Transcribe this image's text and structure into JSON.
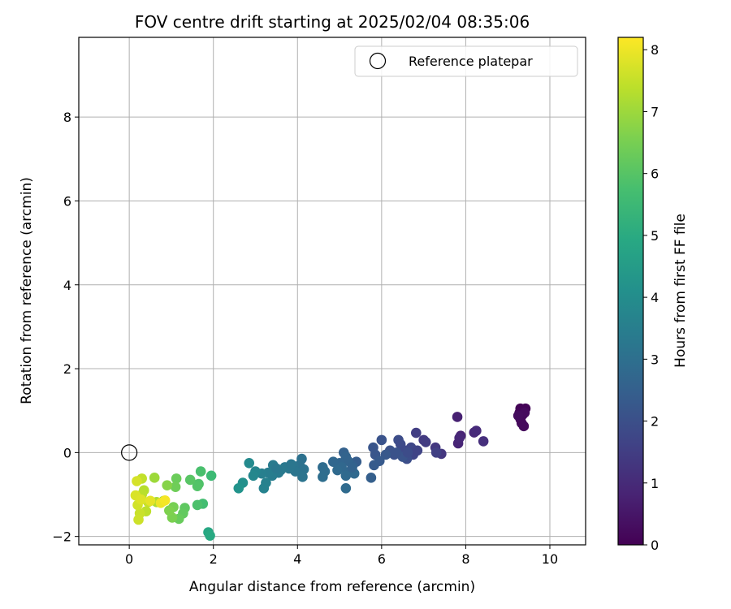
{
  "chart_data": {
    "type": "scatter",
    "title": "FOV centre drift starting at 2025/02/04 08:35:06",
    "xlabel": "Angular distance from reference (arcmin)",
    "ylabel": "Rotation from reference (arcmin)",
    "xlim": [
      -1.2,
      10.85
    ],
    "ylim": [
      -2.2,
      9.9
    ],
    "xticks": [
      0,
      2,
      4,
      6,
      8,
      10
    ],
    "yticks": [
      -2,
      0,
      2,
      4,
      6,
      8
    ],
    "grid": true,
    "legend": {
      "placement": "upper-right",
      "entries": [
        {
          "label": "Reference platepar",
          "marker": "open-circle"
        }
      ]
    },
    "reference_point": {
      "x": 0,
      "y": 0
    },
    "colorbar": {
      "label": "Hours from first FF file",
      "range": [
        0,
        8.2
      ],
      "ticks": [
        0,
        1,
        2,
        3,
        4,
        5,
        6,
        7,
        8
      ],
      "colormap": "viridis"
    },
    "points": [
      {
        "x": 9.3,
        "y": 1.05,
        "t": 0.05
      },
      {
        "x": 9.42,
        "y": 1.05,
        "t": 0.08
      },
      {
        "x": 9.28,
        "y": 0.95,
        "t": 0.1
      },
      {
        "x": 9.35,
        "y": 0.9,
        "t": 0.12
      },
      {
        "x": 9.3,
        "y": 0.8,
        "t": 0.15
      },
      {
        "x": 9.33,
        "y": 0.7,
        "t": 0.18
      },
      {
        "x": 9.38,
        "y": 0.63,
        "t": 0.2
      },
      {
        "x": 9.4,
        "y": 0.95,
        "t": 0.22
      },
      {
        "x": 9.25,
        "y": 0.88,
        "t": 0.25
      },
      {
        "x": 7.8,
        "y": 0.85,
        "t": 0.75
      },
      {
        "x": 7.88,
        "y": 0.4,
        "t": 0.8
      },
      {
        "x": 7.82,
        "y": 0.22,
        "t": 0.85
      },
      {
        "x": 8.2,
        "y": 0.48,
        "t": 0.95
      },
      {
        "x": 8.25,
        "y": 0.52,
        "t": 1.0
      },
      {
        "x": 8.42,
        "y": 0.27,
        "t": 1.1
      },
      {
        "x": 7.85,
        "y": 0.35,
        "t": 0.9
      },
      {
        "x": 6.82,
        "y": 0.47,
        "t": 1.5
      },
      {
        "x": 7.0,
        "y": 0.3,
        "t": 1.4
      },
      {
        "x": 7.05,
        "y": 0.25,
        "t": 1.45
      },
      {
        "x": 7.28,
        "y": 0.12,
        "t": 1.35
      },
      {
        "x": 7.42,
        "y": -0.03,
        "t": 1.3
      },
      {
        "x": 7.3,
        "y": 0.0,
        "t": 1.55
      },
      {
        "x": 6.4,
        "y": 0.3,
        "t": 1.9
      },
      {
        "x": 6.45,
        "y": 0.2,
        "t": 1.85
      },
      {
        "x": 6.55,
        "y": 0.05,
        "t": 1.8
      },
      {
        "x": 6.7,
        "y": 0.12,
        "t": 1.75
      },
      {
        "x": 6.75,
        "y": -0.05,
        "t": 1.7
      },
      {
        "x": 6.6,
        "y": -0.15,
        "t": 1.95
      },
      {
        "x": 6.85,
        "y": 0.05,
        "t": 1.65
      },
      {
        "x": 6.3,
        "y": -0.05,
        "t": 2.0
      },
      {
        "x": 6.2,
        "y": 0.05,
        "t": 2.05
      },
      {
        "x": 6.0,
        "y": 0.3,
        "t": 2.1
      },
      {
        "x": 5.8,
        "y": 0.12,
        "t": 2.15
      },
      {
        "x": 5.85,
        "y": -0.05,
        "t": 2.2
      },
      {
        "x": 6.1,
        "y": -0.05,
        "t": 2.25
      },
      {
        "x": 5.95,
        "y": -0.2,
        "t": 2.3
      },
      {
        "x": 5.82,
        "y": -0.3,
        "t": 2.35
      },
      {
        "x": 6.5,
        "y": -0.1,
        "t": 2.12
      },
      {
        "x": 6.35,
        "y": 0.0,
        "t": 2.08
      },
      {
        "x": 6.62,
        "y": 0.0,
        "t": 1.88
      },
      {
        "x": 5.75,
        "y": -0.6,
        "t": 2.45
      },
      {
        "x": 5.4,
        "y": -0.22,
        "t": 2.4
      },
      {
        "x": 5.3,
        "y": -0.3,
        "t": 2.5
      },
      {
        "x": 5.1,
        "y": 0.0,
        "t": 2.55
      },
      {
        "x": 5.15,
        "y": -0.1,
        "t": 2.6
      },
      {
        "x": 5.2,
        "y": -0.2,
        "t": 2.62
      },
      {
        "x": 5.0,
        "y": -0.25,
        "t": 2.65
      },
      {
        "x": 4.85,
        "y": -0.22,
        "t": 2.7
      },
      {
        "x": 5.05,
        "y": -0.35,
        "t": 2.72
      },
      {
        "x": 5.25,
        "y": -0.45,
        "t": 2.75
      },
      {
        "x": 5.35,
        "y": -0.5,
        "t": 2.78
      },
      {
        "x": 5.15,
        "y": -0.55,
        "t": 2.8
      },
      {
        "x": 4.95,
        "y": -0.42,
        "t": 2.82
      },
      {
        "x": 5.15,
        "y": -0.85,
        "t": 2.85
      },
      {
        "x": 4.6,
        "y": -0.35,
        "t": 2.88
      },
      {
        "x": 4.65,
        "y": -0.45,
        "t": 2.92
      },
      {
        "x": 4.6,
        "y": -0.58,
        "t": 2.95
      },
      {
        "x": 5.3,
        "y": -0.35,
        "t": 2.58
      },
      {
        "x": 4.1,
        "y": -0.15,
        "t": 3.05
      },
      {
        "x": 4.05,
        "y": -0.3,
        "t": 3.1
      },
      {
        "x": 4.15,
        "y": -0.4,
        "t": 3.12
      },
      {
        "x": 4.12,
        "y": -0.58,
        "t": 3.15
      },
      {
        "x": 3.9,
        "y": -0.32,
        "t": 3.18
      },
      {
        "x": 3.95,
        "y": -0.45,
        "t": 3.2
      },
      {
        "x": 3.8,
        "y": -0.38,
        "t": 3.25
      },
      {
        "x": 3.7,
        "y": -0.35,
        "t": 3.28
      },
      {
        "x": 3.6,
        "y": -0.42,
        "t": 3.32
      },
      {
        "x": 3.55,
        "y": -0.48,
        "t": 3.36
      },
      {
        "x": 3.42,
        "y": -0.3,
        "t": 3.4
      },
      {
        "x": 3.4,
        "y": -0.55,
        "t": 3.44
      },
      {
        "x": 3.3,
        "y": -0.48,
        "t": 3.48
      },
      {
        "x": 3.15,
        "y": -0.5,
        "t": 3.55
      },
      {
        "x": 3.25,
        "y": -0.72,
        "t": 3.6
      },
      {
        "x": 3.2,
        "y": -0.85,
        "t": 3.65
      },
      {
        "x": 3.0,
        "y": -0.45,
        "t": 3.75
      },
      {
        "x": 2.95,
        "y": -0.55,
        "t": 3.8
      },
      {
        "x": 2.85,
        "y": -0.25,
        "t": 3.9
      },
      {
        "x": 3.5,
        "y": -0.38,
        "t": 3.3
      },
      {
        "x": 3.85,
        "y": -0.28,
        "t": 3.22
      },
      {
        "x": 2.7,
        "y": -0.72,
        "t": 4.1
      },
      {
        "x": 2.6,
        "y": -0.85,
        "t": 4.2
      },
      {
        "x": 1.88,
        "y": -1.9,
        "t": 4.9
      },
      {
        "x": 1.92,
        "y": -1.98,
        "t": 4.95
      },
      {
        "x": 1.95,
        "y": -0.55,
        "t": 5.6
      },
      {
        "x": 1.75,
        "y": -1.22,
        "t": 5.7
      },
      {
        "x": 1.7,
        "y": -0.45,
        "t": 5.8
      },
      {
        "x": 1.62,
        "y": -1.25,
        "t": 5.85
      },
      {
        "x": 1.65,
        "y": -0.75,
        "t": 5.9
      },
      {
        "x": 1.62,
        "y": -0.8,
        "t": 5.95
      },
      {
        "x": 1.45,
        "y": -0.65,
        "t": 6.05
      },
      {
        "x": 1.32,
        "y": -1.32,
        "t": 6.15
      },
      {
        "x": 1.28,
        "y": -1.45,
        "t": 6.2
      },
      {
        "x": 1.18,
        "y": -1.58,
        "t": 6.3
      },
      {
        "x": 1.12,
        "y": -0.62,
        "t": 6.35
      },
      {
        "x": 1.1,
        "y": -0.82,
        "t": 6.4
      },
      {
        "x": 1.05,
        "y": -1.3,
        "t": 6.5
      },
      {
        "x": 1.02,
        "y": -1.55,
        "t": 6.55
      },
      {
        "x": 0.95,
        "y": -1.38,
        "t": 6.6
      },
      {
        "x": 0.9,
        "y": -0.78,
        "t": 6.7
      },
      {
        "x": 0.82,
        "y": -1.15,
        "t": 6.8
      },
      {
        "x": 0.6,
        "y": -0.6,
        "t": 7.0
      },
      {
        "x": 0.65,
        "y": -1.18,
        "t": 7.2
      },
      {
        "x": 0.45,
        "y": -1.18,
        "t": 7.5
      },
      {
        "x": 0.4,
        "y": -1.4,
        "t": 7.4
      },
      {
        "x": 0.35,
        "y": -0.9,
        "t": 7.3
      },
      {
        "x": 0.3,
        "y": -1.0,
        "t": 7.35
      },
      {
        "x": 0.3,
        "y": -0.62,
        "t": 7.45
      },
      {
        "x": 0.25,
        "y": -1.45,
        "t": 7.55
      },
      {
        "x": 0.22,
        "y": -1.6,
        "t": 7.6
      },
      {
        "x": 0.2,
        "y": -1.25,
        "t": 7.65
      },
      {
        "x": 0.18,
        "y": -0.68,
        "t": 7.7
      },
      {
        "x": 0.15,
        "y": -1.02,
        "t": 7.75
      },
      {
        "x": 0.28,
        "y": -1.12,
        "t": 7.8
      },
      {
        "x": 0.5,
        "y": -1.15,
        "t": 7.9
      },
      {
        "x": 0.75,
        "y": -1.2,
        "t": 8.0
      },
      {
        "x": 0.85,
        "y": -1.14,
        "t": 8.1
      }
    ]
  }
}
